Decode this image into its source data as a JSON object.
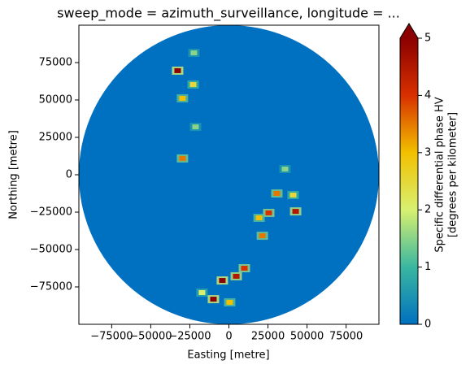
{
  "chart_data": {
    "type": "radar-ppi",
    "title": "sweep_mode = azimuth_surveillance, longitude = ...",
    "x_label": "Easting [metre]",
    "y_label": "Northing [metre]",
    "xlim": [
      -96000,
      96000
    ],
    "ylim": [
      -100000,
      100000
    ],
    "xticks": [
      {
        "value": -75000,
        "label": "−75000"
      },
      {
        "value": -50000,
        "label": "−50000"
      },
      {
        "value": -25000,
        "label": "−25000"
      },
      0,
      25000,
      50000,
      75000
    ],
    "yticks": [
      {
        "value": -75000,
        "label": "−75000"
      },
      {
        "value": -50000,
        "label": "−50000"
      },
      {
        "value": -25000,
        "label": "−25000"
      },
      0,
      25000,
      50000,
      75000
    ],
    "colorbar_label": [
      "Specific differential phase HV",
      "[degrees per kilometer]"
    ],
    "clim": [
      0,
      5
    ],
    "cticks": [
      0,
      1,
      2,
      3,
      4,
      5
    ],
    "extend": "max",
    "colormap": [
      "#0070c0",
      "#3ab7a0",
      "#d8f070",
      "#f2c000",
      "#d83000",
      "#8b0000"
    ],
    "cells": {
      "x": [
        -32800,
        -22900,
        -29700,
        -21350,
        -29700,
        35900,
        30700,
        41100,
        42700,
        25500,
        19300,
        21400,
        9900,
        4700,
        -4200,
        -9900,
        500,
        -22400,
        -17200
      ],
      "y": [
        69600,
        60300,
        51100,
        32000,
        10900,
        3800,
        -12500,
        -13600,
        -24500,
        -25500,
        -28800,
        -40800,
        -62500,
        -67900,
        -70700,
        -83200,
        -85300,
        81500,
        -78800
      ],
      "values": [
        5,
        2.5,
        3,
        1.5,
        3.5,
        1.5,
        3.5,
        2.5,
        4.5,
        4,
        3,
        3.5,
        4,
        4.5,
        5,
        5,
        3,
        1.5,
        2
      ]
    }
  }
}
